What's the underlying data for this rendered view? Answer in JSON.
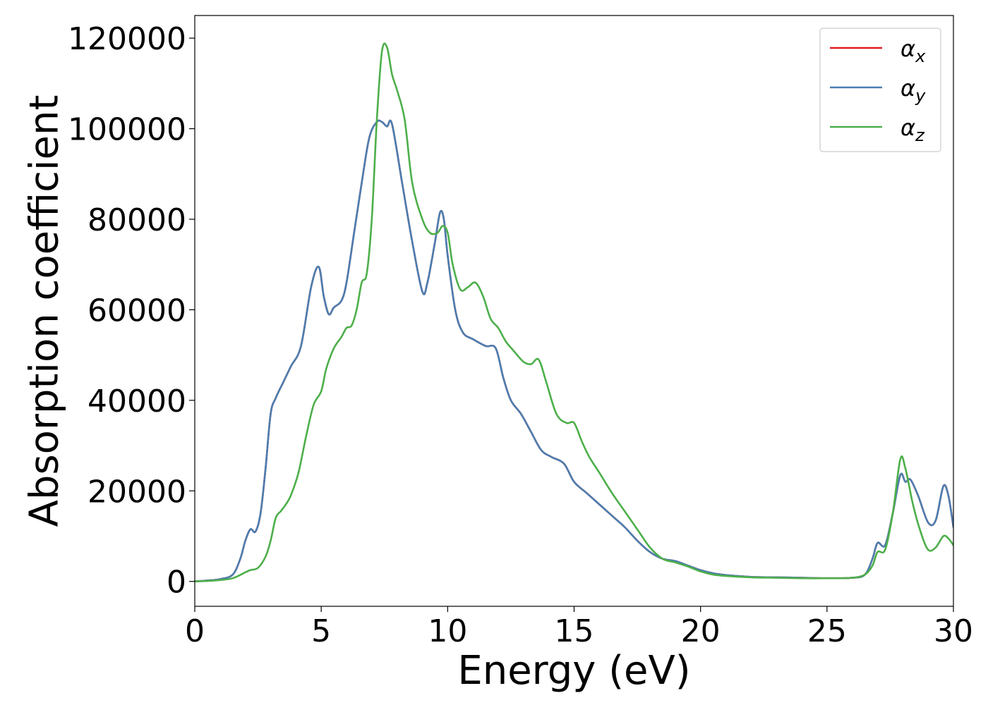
{
  "chart_data": {
    "type": "line",
    "title": "",
    "xlabel": "Energy (eV)",
    "ylabel": "Absorption coefficient",
    "xlim": [
      0,
      30
    ],
    "ylim": [
      -5500,
      125000
    ],
    "xticks": [
      0,
      5,
      10,
      15,
      20,
      25,
      30
    ],
    "yticks": [
      0,
      20000,
      40000,
      60000,
      80000,
      100000,
      120000
    ],
    "grid": false,
    "legend_position": "top-right",
    "series": [
      {
        "name": "α_x",
        "legend_symbol": "α",
        "legend_sub": "x",
        "color": "#e41a1c",
        "x": [
          0,
          0.5,
          1.0,
          1.5,
          1.8,
          2.0,
          2.2,
          2.4,
          2.6,
          2.8,
          3.0,
          3.2,
          3.5,
          3.8,
          4.2,
          4.6,
          4.9,
          5.1,
          5.3,
          5.5,
          5.8,
          6.0,
          6.3,
          6.6,
          6.9,
          7.2,
          7.4,
          7.6,
          7.8,
          8.2,
          8.6,
          9.0,
          9.2,
          9.5,
          9.7,
          9.85,
          10.0,
          10.3,
          10.6,
          11.0,
          11.5,
          11.9,
          12.2,
          12.5,
          12.9,
          13.3,
          13.7,
          14.1,
          14.6,
          15.0,
          15.5,
          16.0,
          16.5,
          17.0,
          17.5,
          18.0,
          18.5,
          19.0,
          19.5,
          20.0,
          20.5,
          21.0,
          22.0,
          23.0,
          24.0,
          25.0,
          26.0,
          26.5,
          26.8,
          27.0,
          27.3,
          27.6,
          27.9,
          28.1,
          28.3,
          28.6,
          29.0,
          29.3,
          29.6,
          29.8,
          30.0
        ],
        "y": [
          0,
          200,
          500,
          1500,
          5000,
          9000,
          11500,
          11000,
          15000,
          25000,
          37000,
          40500,
          44000,
          47500,
          52000,
          65000,
          69500,
          63000,
          59000,
          60500,
          62000,
          66000,
          77000,
          88000,
          98000,
          101500,
          101500,
          100500,
          101000,
          88000,
          75000,
          64000,
          66000,
          75000,
          81500,
          80000,
          72000,
          60000,
          55000,
          53500,
          52000,
          51500,
          45000,
          40000,
          37000,
          33000,
          29000,
          27500,
          26000,
          22000,
          19500,
          17000,
          14500,
          12000,
          9000,
          6500,
          5000,
          4500,
          3500,
          2500,
          1800,
          1400,
          1000,
          900,
          800,
          700,
          800,
          1500,
          5000,
          8500,
          8000,
          15000,
          23500,
          22000,
          22500,
          19000,
          13000,
          13500,
          21000,
          19000,
          12000
        ]
      },
      {
        "name": "α_y",
        "legend_symbol": "α",
        "legend_sub": "y",
        "color": "#4a7eb0",
        "x": [
          0,
          0.5,
          1.0,
          1.5,
          1.8,
          2.0,
          2.2,
          2.4,
          2.6,
          2.8,
          3.0,
          3.2,
          3.5,
          3.8,
          4.2,
          4.6,
          4.9,
          5.1,
          5.3,
          5.5,
          5.8,
          6.0,
          6.3,
          6.6,
          6.9,
          7.2,
          7.4,
          7.6,
          7.8,
          8.2,
          8.6,
          9.0,
          9.2,
          9.5,
          9.7,
          9.85,
          10.0,
          10.3,
          10.6,
          11.0,
          11.5,
          11.9,
          12.2,
          12.5,
          12.9,
          13.3,
          13.7,
          14.1,
          14.6,
          15.0,
          15.5,
          16.0,
          16.5,
          17.0,
          17.5,
          18.0,
          18.5,
          19.0,
          19.5,
          20.0,
          20.5,
          21.0,
          22.0,
          23.0,
          24.0,
          25.0,
          26.0,
          26.5,
          26.8,
          27.0,
          27.3,
          27.6,
          27.9,
          28.1,
          28.3,
          28.6,
          29.0,
          29.3,
          29.6,
          29.8,
          30.0
        ],
        "y": [
          0,
          200,
          500,
          1500,
          5000,
          9000,
          11500,
          11000,
          15000,
          25000,
          37000,
          40500,
          44000,
          47500,
          52000,
          65000,
          69500,
          63000,
          59000,
          60500,
          62000,
          66000,
          77000,
          88000,
          98000,
          101500,
          101500,
          100500,
          101000,
          88000,
          75000,
          64000,
          66000,
          75000,
          81500,
          80000,
          72000,
          60000,
          55000,
          53500,
          52000,
          51500,
          45000,
          40000,
          37000,
          33000,
          29000,
          27500,
          26000,
          22000,
          19500,
          17000,
          14500,
          12000,
          9000,
          6500,
          5000,
          4500,
          3500,
          2500,
          1800,
          1400,
          1000,
          900,
          800,
          700,
          800,
          1500,
          5000,
          8500,
          8000,
          15000,
          23500,
          22000,
          22500,
          19000,
          13000,
          13500,
          21000,
          19000,
          12000
        ]
      },
      {
        "name": "α_z",
        "legend_symbol": "α",
        "legend_sub": "z",
        "color": "#4daf4a",
        "x": [
          0,
          0.5,
          1.0,
          1.5,
          2.0,
          2.2,
          2.5,
          2.8,
          3.0,
          3.2,
          3.4,
          3.6,
          3.8,
          4.1,
          4.4,
          4.7,
          5.0,
          5.2,
          5.5,
          5.8,
          6.0,
          6.2,
          6.4,
          6.6,
          6.8,
          7.0,
          7.2,
          7.4,
          7.6,
          7.8,
          8.0,
          8.3,
          8.6,
          9.0,
          9.3,
          9.6,
          9.8,
          10.0,
          10.2,
          10.5,
          10.8,
          11.1,
          11.4,
          11.7,
          12.0,
          12.3,
          12.6,
          13.0,
          13.3,
          13.6,
          13.9,
          14.3,
          14.7,
          15.0,
          15.3,
          15.6,
          16.0,
          16.5,
          17.0,
          17.5,
          18.0,
          18.5,
          19.0,
          19.5,
          20.0,
          20.5,
          21.0,
          22.0,
          23.0,
          24.0,
          25.0,
          26.0,
          26.5,
          26.8,
          27.0,
          27.3,
          27.6,
          27.9,
          28.1,
          28.4,
          28.7,
          29.0,
          29.3,
          29.6,
          29.8,
          30.0
        ],
        "y": [
          0,
          100,
          300,
          700,
          2000,
          2500,
          3000,
          5500,
          9000,
          14000,
          15500,
          17000,
          19000,
          24000,
          32000,
          39000,
          42000,
          47000,
          51500,
          54000,
          56000,
          56500,
          60000,
          66000,
          68000,
          80000,
          102000,
          117000,
          118000,
          112000,
          108500,
          102000,
          88000,
          80000,
          77000,
          77000,
          78500,
          77000,
          70000,
          64500,
          65000,
          66000,
          63000,
          58000,
          56000,
          53000,
          51000,
          48500,
          48000,
          49000,
          44000,
          37000,
          35000,
          35000,
          31000,
          27500,
          24000,
          19500,
          15500,
          11500,
          7500,
          5000,
          4200,
          3300,
          2200,
          1500,
          1200,
          900,
          800,
          700,
          700,
          800,
          1500,
          3500,
          6500,
          7000,
          15000,
          27000,
          25000,
          17000,
          11000,
          7000,
          7500,
          10000,
          9500,
          8000
        ]
      }
    ]
  }
}
